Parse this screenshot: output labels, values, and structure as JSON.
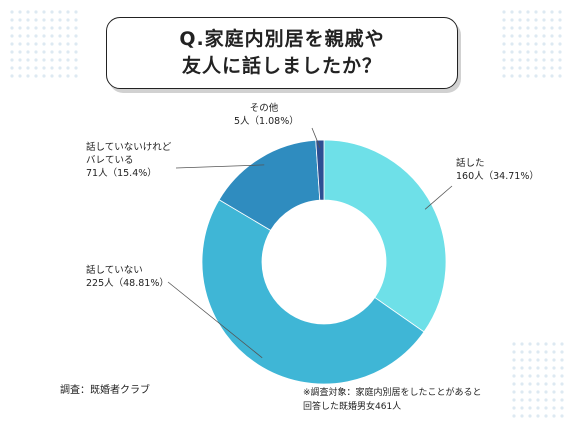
{
  "title": {
    "line1": "Q.家庭内別居を親戚や",
    "line2": "友人に話しましたか？"
  },
  "chart_data": {
    "type": "pie",
    "style": "donut",
    "slices": [
      {
        "label": "話した",
        "count_text": "160人（34.71%）",
        "value": 34.71,
        "color": "#6ee0e8"
      },
      {
        "label": "話していない",
        "count_text": "225人（48.81%）",
        "value": 48.81,
        "color": "#3fb6d6"
      },
      {
        "label_line1": "話していないけれど",
        "label_line2": "バレている",
        "count_text": "71人（15.4%）",
        "value": 15.4,
        "color": "#2f8cbf"
      },
      {
        "label": "その他",
        "count_text": "5人（1.08%）",
        "value": 1.08,
        "color": "#2d4f93"
      }
    ]
  },
  "source": "調査：既婚者クラブ",
  "footnote": {
    "line1": "※調査対象：家庭内別居をしたことがあると",
    "line2": "回答した既婚男女461人"
  },
  "colors": {
    "leader_line": "#555555",
    "border": "#222222",
    "dot": "#dde9f2"
  }
}
